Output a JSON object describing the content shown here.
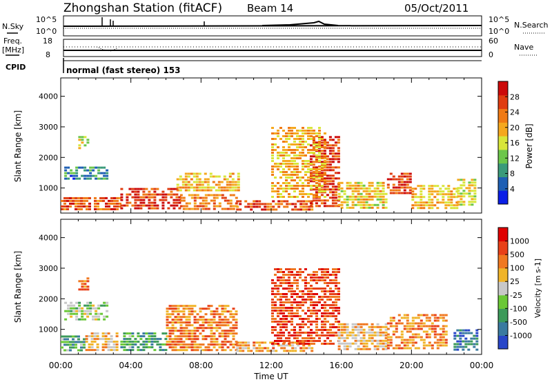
{
  "header": {
    "title": "Zhongshan Station (fitACF)",
    "beam": "Beam 14",
    "date": "05/Oct/2011"
  },
  "param_panels": {
    "nsky_label": "N.Sky",
    "nsearch_label": "N.Search",
    "noise_ticks": [
      "10^5",
      "10^0"
    ],
    "freq_label_line1": "Freq.",
    "freq_label_line2": "[MHz]",
    "freq_ticks": [
      "18",
      "8"
    ],
    "nave_label": "Nave",
    "nave_ticks": [
      "60",
      "0"
    ],
    "cpid_label": "CPID",
    "cpid_text": "normal (fast stereo) 153"
  },
  "chart_data": [
    {
      "type": "heatmap",
      "name": "power",
      "ylabel": "Slant Range [km]",
      "ylim": [
        180,
        4600
      ],
      "yticks": [
        1000,
        2000,
        3000,
        4000
      ],
      "xlim": [
        0,
        24
      ],
      "colorbar_label": "Power [dB]",
      "colorbar_ticks": [
        "4",
        "8",
        "12",
        "16",
        "20",
        "24",
        "28"
      ],
      "colorbar_colors": [
        "#0a1ee6",
        "#1e5fb4",
        "#3a9a7a",
        "#6cc64a",
        "#d8e63a",
        "#f5a81e",
        "#f07a14",
        "#e03c10",
        "#cc0a0a"
      ],
      "blobs": [
        {
          "t0": 0.0,
          "t1": 3.4,
          "r0": 250,
          "r1": 700,
          "level": 0.8
        },
        {
          "t0": 3.4,
          "t1": 6.8,
          "r0": 300,
          "r1": 1000,
          "level": 0.85
        },
        {
          "t0": 6.8,
          "t1": 10.0,
          "r0": 300,
          "r1": 800,
          "level": 0.7
        },
        {
          "t0": 10.0,
          "t1": 14.4,
          "r0": 300,
          "r1": 600,
          "level": 0.8
        },
        {
          "t0": 14.2,
          "t1": 15.8,
          "r0": 400,
          "r1": 2700,
          "level": 0.85
        },
        {
          "t0": 12.0,
          "t1": 15.0,
          "r0": 700,
          "r1": 3000,
          "level": 0.6
        },
        {
          "t0": 15.8,
          "t1": 18.6,
          "r0": 300,
          "r1": 1200,
          "level": 0.55
        },
        {
          "t0": 18.6,
          "t1": 20.0,
          "r0": 800,
          "r1": 1500,
          "level": 0.85
        },
        {
          "t0": 20.0,
          "t1": 22.6,
          "r0": 350,
          "r1": 1100,
          "level": 0.6
        },
        {
          "t0": 0.2,
          "t1": 2.6,
          "r0": 1300,
          "r1": 1700,
          "level": 0.25
        },
        {
          "t0": 1.0,
          "t1": 1.6,
          "r0": 2300,
          "r1": 2700,
          "level": 0.5
        },
        {
          "t0": 6.6,
          "t1": 10.2,
          "r0": 900,
          "r1": 1500,
          "level": 0.6
        },
        {
          "t0": 22.6,
          "t1": 23.6,
          "r0": 400,
          "r1": 1300,
          "level": 0.5
        }
      ]
    },
    {
      "type": "heatmap",
      "name": "velocity",
      "ylabel": "Slant Range [km]",
      "ylim": [
        180,
        4600
      ],
      "yticks": [
        1000,
        2000,
        3000,
        4000
      ],
      "xlim": [
        0,
        24
      ],
      "xticks": [
        "00:00",
        "04:00",
        "08:00",
        "12:00",
        "16:00",
        "20:00",
        "00:00"
      ],
      "xlabel": "Time UT",
      "colorbar_label": "Velocity [m s-1]",
      "colorbar_ticks": [
        "1000",
        "500",
        "100",
        "25",
        "-25",
        "-100",
        "-500",
        "-1000"
      ],
      "colorbar_colors": [
        "#2846c8",
        "#3a7aa0",
        "#3c9a5a",
        "#6ac836",
        "#c8c8c8",
        "#f0b428",
        "#f07820",
        "#e84018",
        "#e00000"
      ],
      "blobs": [
        {
          "t0": 0.0,
          "t1": 1.4,
          "r0": 300,
          "r1": 800,
          "level": 0.3
        },
        {
          "t0": 1.4,
          "t1": 3.2,
          "r0": 300,
          "r1": 900,
          "level": 0.6
        },
        {
          "t0": 0.2,
          "t1": 2.6,
          "r0": 1300,
          "r1": 1900,
          "level": 0.45
        },
        {
          "t0": 1.0,
          "t1": 1.6,
          "r0": 2300,
          "r1": 2700,
          "level": 0.75
        },
        {
          "t0": 3.4,
          "t1": 6.0,
          "r0": 300,
          "r1": 900,
          "level": 0.3
        },
        {
          "t0": 6.0,
          "t1": 10.0,
          "r0": 300,
          "r1": 1800,
          "level": 0.72
        },
        {
          "t0": 10.0,
          "t1": 14.4,
          "r0": 300,
          "r1": 600,
          "level": 0.65
        },
        {
          "t0": 12.0,
          "t1": 15.8,
          "r0": 500,
          "r1": 3000,
          "level": 0.82
        },
        {
          "t0": 15.8,
          "t1": 18.6,
          "r0": 300,
          "r1": 1200,
          "level": 0.6
        },
        {
          "t0": 18.6,
          "t1": 22.0,
          "r0": 400,
          "r1": 1500,
          "level": 0.7
        },
        {
          "t0": 22.4,
          "t1": 23.8,
          "r0": 300,
          "r1": 1000,
          "level": 0.15
        }
      ]
    }
  ]
}
